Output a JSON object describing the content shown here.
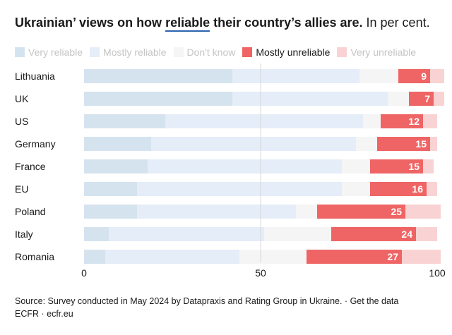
{
  "title": {
    "part1": "Ukrainian’ views on how ",
    "highlight": "reliable",
    "part2": " their country’s allies are.",
    "unit": " In per cent."
  },
  "colors": {
    "very_reliable": "#d5e3ef",
    "mostly_reliable": "#e4edf8",
    "dont_know": "#f5f5f5",
    "mostly_unreliable": "#ef6464",
    "very_unreliable": "#f9d3d3",
    "active_legend": "mostly_unreliable"
  },
  "chart_data": {
    "type": "bar",
    "orientation": "horizontal",
    "stacked": true,
    "categories": [
      "Lithuania",
      "UK",
      "US",
      "Germany",
      "France",
      "EU",
      "Poland",
      "Italy",
      "Romania"
    ],
    "series": [
      {
        "name": "Very reliable",
        "key": "very_reliable",
        "values": [
          42,
          42,
          23,
          19,
          18,
          15,
          15,
          7,
          6
        ]
      },
      {
        "name": "Mostly reliable",
        "key": "mostly_reliable",
        "values": [
          36,
          44,
          56,
          58,
          55,
          58,
          45,
          44,
          38
        ]
      },
      {
        "name": "Don't know",
        "key": "dont_know",
        "values": [
          11,
          6,
          5,
          6,
          8,
          8,
          6,
          19,
          19
        ]
      },
      {
        "name": "Mostly unreliable",
        "key": "mostly_unreliable",
        "values": [
          9,
          7,
          12,
          15,
          15,
          16,
          25,
          24,
          27
        ]
      },
      {
        "name": "Very unreliable",
        "key": "very_unreliable",
        "values": [
          4,
          3,
          4,
          2,
          3,
          3,
          10,
          6,
          11
        ]
      }
    ],
    "labeled_series": "mostly_unreliable",
    "xlim": [
      0,
      100
    ],
    "xticks": [
      0,
      50,
      100
    ],
    "grid": "vertical at 50"
  },
  "source": {
    "text": "Source: Survey conducted in May 2024 by Datapraxis and Rating Group in Ukraine.",
    "sep": " · ",
    "link": "Get the data",
    "credit": "ECFR · ecfr.eu"
  }
}
